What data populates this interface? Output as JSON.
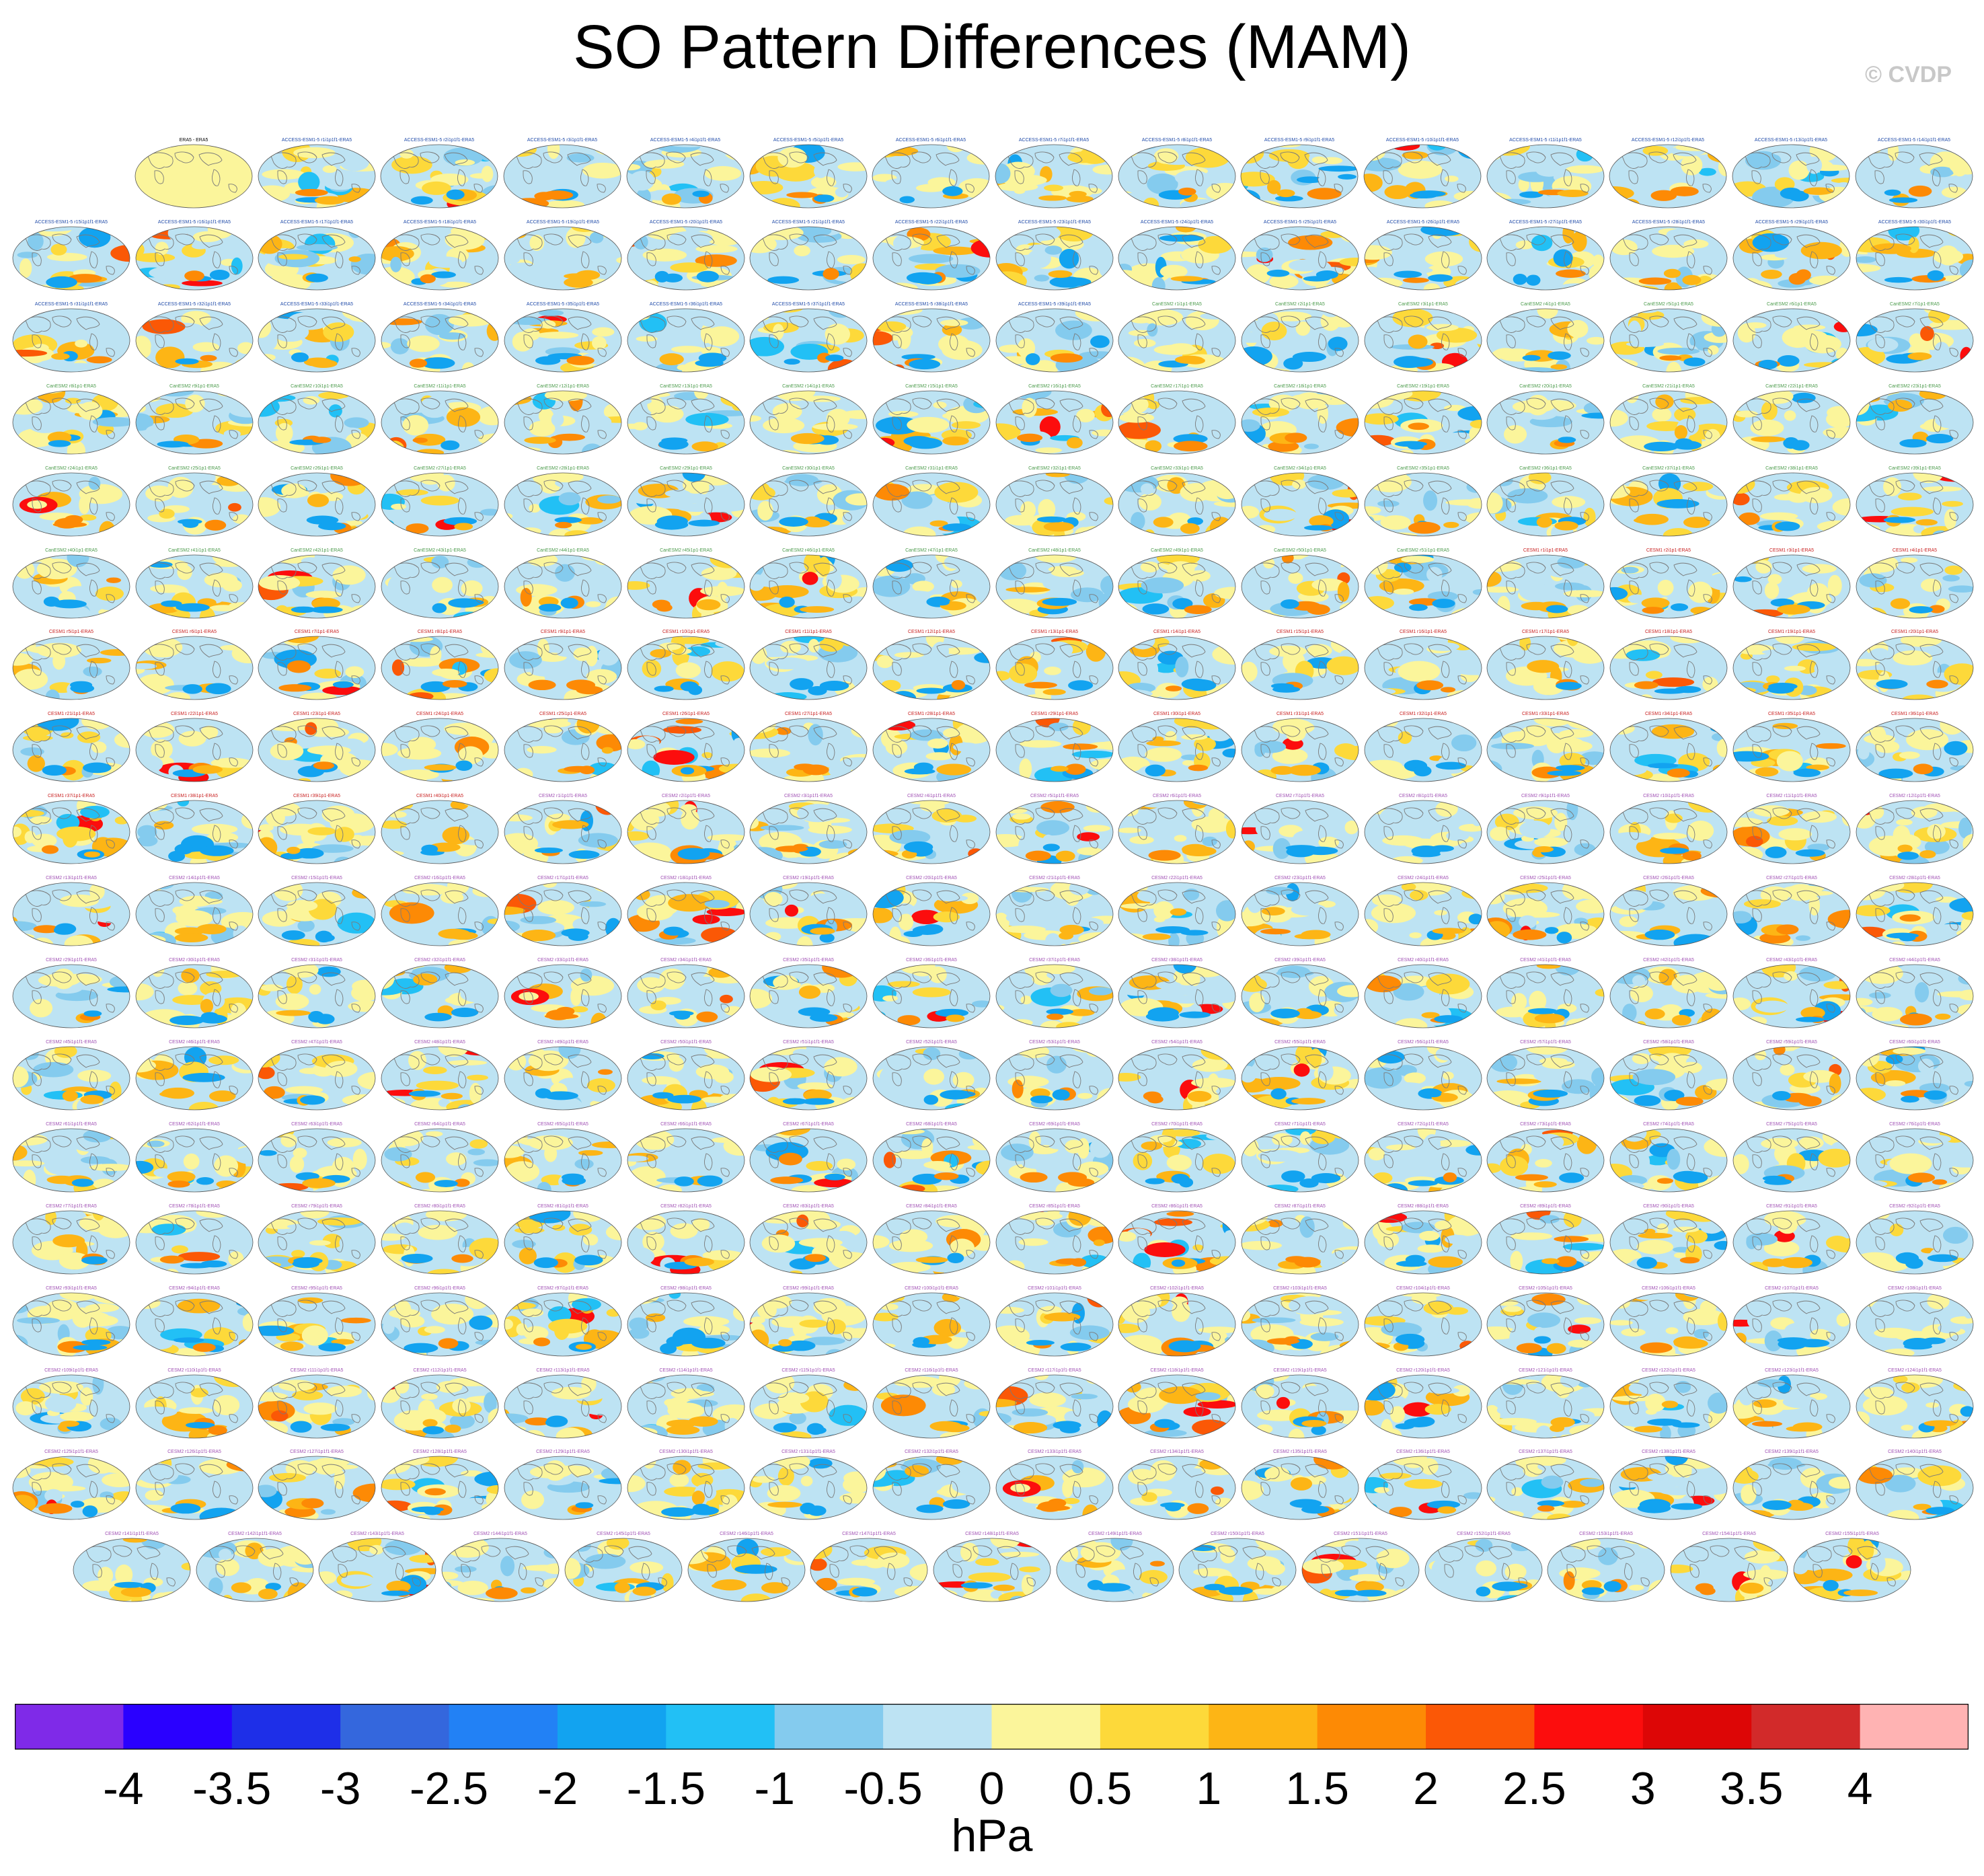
{
  "title": "SO Pattern Differences (MAM)",
  "copyright": "© CVDP",
  "chart_data": {
    "type": "heatmap",
    "title": "SO Pattern Differences (MAM)",
    "projection": "Robinson (global maps, Pacific-centered)",
    "panel_rows": [
      15,
      16,
      16,
      16,
      16,
      16,
      16,
      16,
      16,
      16,
      16,
      16,
      16,
      16,
      16,
      16,
      16,
      15
    ],
    "first_panel_title": "ERA5 - ERA5",
    "panel_title_groups": [
      {
        "model": "ACCESS-ESM1-5",
        "title_template": "ACCESS-ESM1-5 r{n}i1p1f1-ERA5",
        "title_color": "#1f4aa8"
      },
      {
        "model": "CanESM2",
        "title_template": "CanESM2 r{n}i1p1-ERA5",
        "title_color": "#4a9a4a"
      },
      {
        "model": "CESM1",
        "title_template": "CESM1 r{n}i1p1-ERA5",
        "title_color": "#c81e1e"
      },
      {
        "model": "CESM2",
        "title_template": "CESM2 r{n}i1p1f1-ERA5",
        "title_color": "#a050b4"
      },
      {
        "model": "CSIRO-Mk3-6-0",
        "title_template": "CSIRO-Mk3-6-0 r{n}i1p1-ERA5",
        "title_color": "#6a6a6a"
      }
    ],
    "colorbar": {
      "label": "hPa",
      "levels": [
        -4,
        -3.5,
        -3,
        -2.5,
        -2,
        -1.5,
        -1,
        -0.5,
        0,
        0.5,
        1,
        1.5,
        2,
        2.5,
        3,
        3.5,
        4
      ],
      "tick_labels": [
        "-4",
        "-3.5",
        "-3",
        "-2.5",
        "-2",
        "-1.5",
        "-1",
        "-0.5",
        "0",
        "0.5",
        "1",
        "1.5",
        "2",
        "2.5",
        "3",
        "3.5",
        "4"
      ],
      "colors": [
        "#7f2ae8",
        "#2a00ff",
        "#1e2fe8",
        "#3467dd",
        "#2281f5",
        "#12a3f0",
        "#22c0f5",
        "#84cbee",
        "#bde3f3",
        "#fbf59b",
        "#fdd93a",
        "#fdb515",
        "#fd8a05",
        "#fb5806",
        "#fc0d0d",
        "#dd0606",
        "#d22a2a",
        "#ffb3b3"
      ]
    }
  }
}
